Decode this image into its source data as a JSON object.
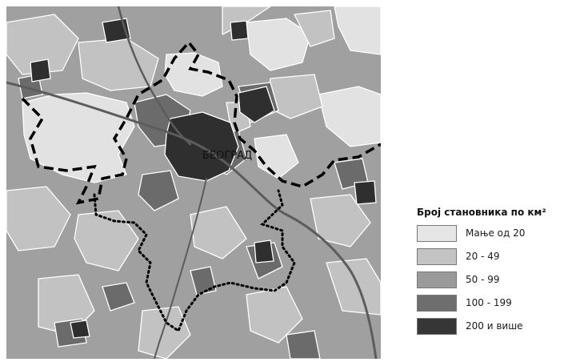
{
  "map": {
    "city_label": "БЕОГРАД"
  },
  "legend": {
    "title": "Број становника по км²",
    "items": [
      {
        "label": "Мање од 20",
        "color": "#e6e6e6"
      },
      {
        "label": "20 - 49",
        "color": "#c3c3c3"
      },
      {
        "label": "50 - 99",
        "color": "#9a9a9a"
      },
      {
        "label": "100 - 199",
        "color": "#6e6e6e"
      },
      {
        "label": "200 и више",
        "color": "#363636"
      }
    ]
  }
}
